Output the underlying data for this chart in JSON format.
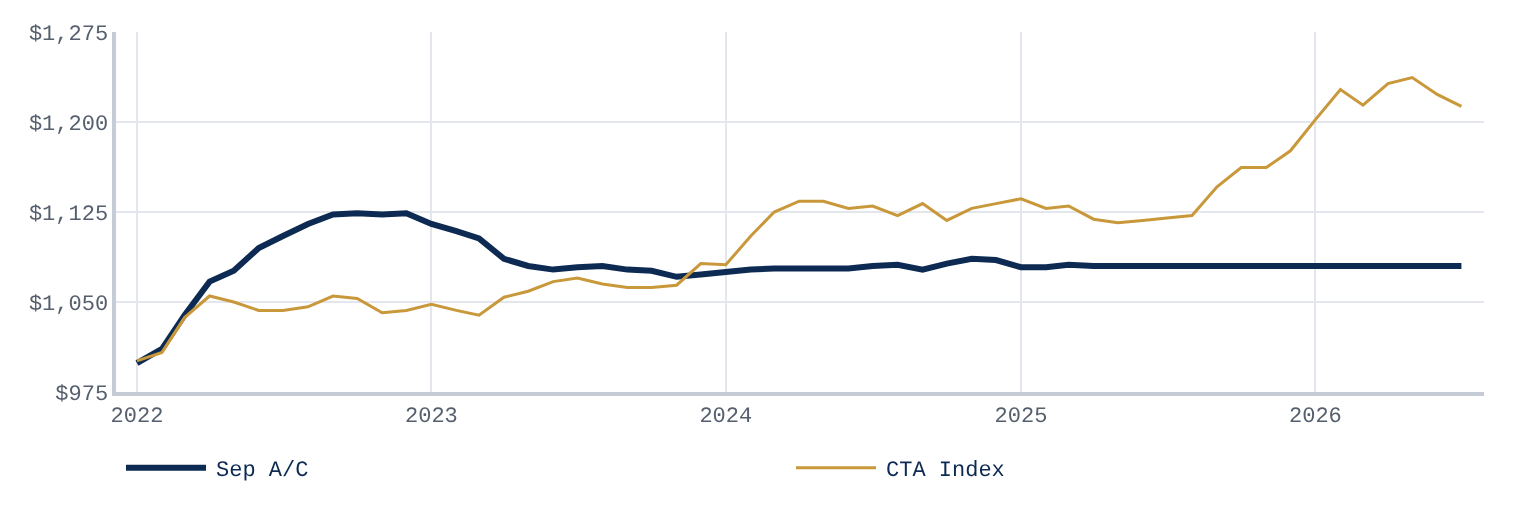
{
  "chart_data": {
    "type": "line",
    "x": [
      "2022-01",
      "2022-02",
      "2022-03",
      "2022-04",
      "2022-05",
      "2022-06",
      "2022-07",
      "2022-08",
      "2022-09",
      "2022-10",
      "2022-11",
      "2022-12",
      "2023-01",
      "2023-02",
      "2023-03",
      "2023-04",
      "2023-05",
      "2023-06",
      "2023-07",
      "2023-08",
      "2023-09",
      "2023-10",
      "2023-11",
      "2023-12",
      "2024-01",
      "2024-02",
      "2024-03",
      "2024-04",
      "2024-05",
      "2024-06",
      "2024-07",
      "2024-08",
      "2024-09",
      "2024-10",
      "2024-11",
      "2024-12",
      "2025-01",
      "2025-02",
      "2025-03",
      "2025-04",
      "2025-05",
      "2025-06",
      "2025-07",
      "2025-08",
      "2025-09",
      "2025-10",
      "2025-11",
      "2025-12",
      "2026-01",
      "2026-02",
      "2026-03",
      "2026-04",
      "2026-05",
      "2026-06",
      "2026-07"
    ],
    "series": [
      {
        "name": "Sep A/C",
        "color": "#0d2b52",
        "values": [
          999,
          1011,
          1039,
          1067,
          1076,
          1095,
          1105,
          1115,
          1123,
          1124,
          1123,
          1124,
          1115,
          1109,
          1103,
          1086,
          1080,
          1077,
          1079,
          1080,
          1077,
          1076,
          1071,
          1073,
          1075,
          1077,
          1078,
          1078,
          1078,
          1078,
          1080,
          1081,
          1077,
          1082,
          1086,
          1085,
          1079,
          1079,
          1081,
          1080,
          1080,
          1080,
          1080,
          1080,
          1080,
          1080,
          1080,
          1080,
          1080,
          1080,
          1080,
          1080,
          1080,
          1080,
          1080
        ]
      },
      {
        "name": "CTA Index",
        "color": "#c8983a",
        "values": [
          1001,
          1008,
          1037,
          1055,
          1050,
          1043,
          1043,
          1046,
          1055,
          1053,
          1041,
          1043,
          1048,
          1043,
          1039,
          1054,
          1059,
          1067,
          1070,
          1065,
          1062,
          1062,
          1064,
          1082,
          1081,
          1105,
          1125,
          1134,
          1134,
          1128,
          1130,
          1122,
          1132,
          1118,
          1128,
          1132,
          1136,
          1128,
          1130,
          1119,
          1116,
          1118,
          1120,
          1122,
          1146,
          1162,
          1162,
          1176,
          1202,
          1227,
          1214,
          1232,
          1237,
          1223,
          1213
        ]
      }
    ],
    "xlim": [
      "2021-12-06",
      "2026-07-29"
    ],
    "xticks": [
      {
        "value": "2022-01-01",
        "label": "2022"
      },
      {
        "value": "2023-01-01",
        "label": "2023"
      },
      {
        "value": "2024-01-01",
        "label": "2024"
      },
      {
        "value": "2025-01-01",
        "label": "2025"
      },
      {
        "value": "2026-01-01",
        "label": "2026"
      }
    ],
    "ylim": [
      975,
      1275
    ],
    "yticks": [
      {
        "value": 975,
        "label": "$975"
      },
      {
        "value": 1050,
        "label": "$1,050"
      },
      {
        "value": 1125,
        "label": "$1,125"
      },
      {
        "value": 1200,
        "label": "$1,200"
      },
      {
        "value": 1275,
        "label": "$1,275"
      }
    ],
    "grid": true,
    "legend": "bottom",
    "marker": "none",
    "line_style": "solid"
  }
}
